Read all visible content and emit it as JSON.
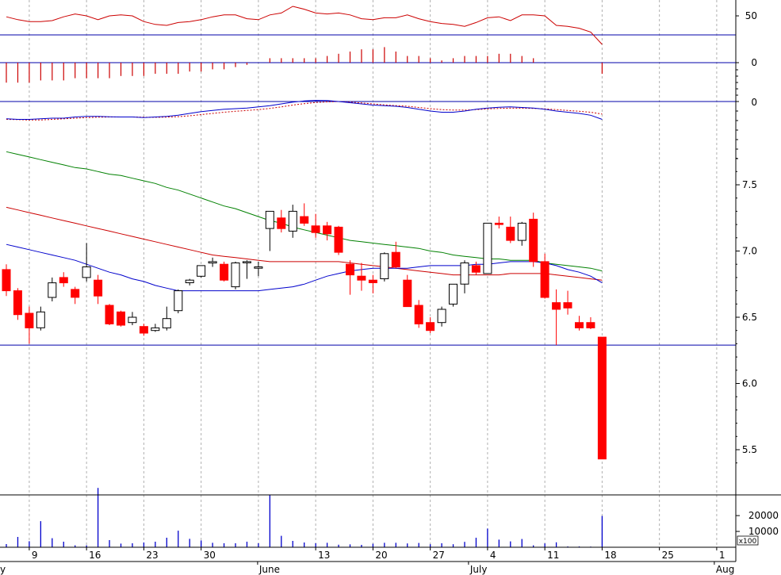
{
  "chart_data": {
    "type": "candlestick",
    "grid": "vertical dotted",
    "dates": [
      "2021-05-06",
      "2021-05-07",
      "2021-05-10",
      "2021-05-11",
      "2021-05-12",
      "2021-05-13",
      "2021-05-14",
      "2021-05-17",
      "2021-05-18",
      "2021-05-19",
      "2021-05-20",
      "2021-05-21",
      "2021-05-24",
      "2021-05-25",
      "2021-05-26",
      "2021-05-27",
      "2021-05-28",
      "2021-05-31",
      "2021-06-01",
      "2021-06-02",
      "2021-06-03",
      "2021-06-04",
      "2021-06-07",
      "2021-06-08",
      "2021-06-09",
      "2021-06-10",
      "2021-06-11",
      "2021-06-14",
      "2021-06-15",
      "2021-06-16",
      "2021-06-17",
      "2021-06-18",
      "2021-06-21",
      "2021-06-22",
      "2021-06-23",
      "2021-06-24",
      "2021-06-25",
      "2021-06-28",
      "2021-06-29",
      "2021-06-30",
      "2021-07-01",
      "2021-07-02",
      "2021-07-05",
      "2021-07-06",
      "2021-07-07",
      "2021-07-08",
      "2021-07-09",
      "2021-07-12",
      "2021-07-13",
      "2021-07-14",
      "2021-07-15",
      "2021-07-16",
      "2021-07-19"
    ],
    "ohlc": [
      [
        6.86,
        6.9,
        6.66,
        6.7
      ],
      [
        6.7,
        6.72,
        6.48,
        6.52
      ],
      [
        6.53,
        6.58,
        6.3,
        6.42
      ],
      [
        6.42,
        6.58,
        6.4,
        6.54
      ],
      [
        6.65,
        6.8,
        6.62,
        6.76
      ],
      [
        6.8,
        6.84,
        6.73,
        6.76
      ],
      [
        6.71,
        6.73,
        6.6,
        6.65
      ],
      [
        6.8,
        7.06,
        6.77,
        6.88
      ],
      [
        6.78,
        6.82,
        6.6,
        6.66
      ],
      [
        6.59,
        6.6,
        6.44,
        6.45
      ],
      [
        6.54,
        6.55,
        6.43,
        6.44
      ],
      [
        6.46,
        6.54,
        6.44,
        6.5
      ],
      [
        6.43,
        6.45,
        6.36,
        6.38
      ],
      [
        6.4,
        6.45,
        6.39,
        6.42
      ],
      [
        6.42,
        6.58,
        6.4,
        6.49
      ],
      [
        6.55,
        6.71,
        6.53,
        6.7
      ],
      [
        6.76,
        6.79,
        6.74,
        6.78
      ],
      [
        6.81,
        6.89,
        6.8,
        6.89
      ],
      [
        6.91,
        6.95,
        6.88,
        6.92
      ],
      [
        6.9,
        6.92,
        6.77,
        6.78
      ],
      [
        6.73,
        6.92,
        6.71,
        6.91
      ],
      [
        6.92,
        6.93,
        6.79,
        6.92
      ],
      [
        6.87,
        6.92,
        6.81,
        6.88
      ],
      [
        7.17,
        7.3,
        7.0,
        7.3
      ],
      [
        7.25,
        7.31,
        7.14,
        7.17
      ],
      [
        7.15,
        7.35,
        7.1,
        7.3
      ],
      [
        7.26,
        7.36,
        7.19,
        7.21
      ],
      [
        7.19,
        7.28,
        7.1,
        7.14
      ],
      [
        7.19,
        7.22,
        7.08,
        7.13
      ],
      [
        7.18,
        7.19,
        6.97,
        6.99
      ],
      [
        6.9,
        6.93,
        6.67,
        6.82
      ],
      [
        6.81,
        6.91,
        6.7,
        6.78
      ],
      [
        6.78,
        6.82,
        6.68,
        6.76
      ],
      [
        6.79,
        6.99,
        6.77,
        6.98
      ],
      [
        6.99,
        7.07,
        6.87,
        6.88
      ],
      [
        6.78,
        6.82,
        6.58,
        6.58
      ],
      [
        6.59,
        6.63,
        6.42,
        6.45
      ],
      [
        6.46,
        6.5,
        6.38,
        6.4
      ],
      [
        6.46,
        6.58,
        6.43,
        6.56
      ],
      [
        6.6,
        6.75,
        6.58,
        6.75
      ],
      [
        6.75,
        6.93,
        6.68,
        6.91
      ],
      [
        6.89,
        6.92,
        6.82,
        6.84
      ],
      [
        6.83,
        7.21,
        6.83,
        7.21
      ],
      [
        7.21,
        7.26,
        7.17,
        7.2
      ],
      [
        7.18,
        7.26,
        7.06,
        7.08
      ],
      [
        7.08,
        7.22,
        7.04,
        7.21
      ],
      [
        7.24,
        7.29,
        6.88,
        6.92
      ],
      [
        6.92,
        6.98,
        6.64,
        6.65
      ],
      [
        6.61,
        6.71,
        6.29,
        6.56
      ],
      [
        6.61,
        6.7,
        6.52,
        6.57
      ],
      [
        6.46,
        6.51,
        6.4,
        6.42
      ],
      [
        6.46,
        6.5,
        6.41,
        6.42
      ],
      [
        6.35,
        6.35,
        5.43,
        5.43
      ]
    ],
    "volume": [
      2000,
      6500,
      3800,
      16500,
      5700,
      3500,
      1200,
      1200,
      37500,
      4500,
      2300,
      2500,
      3000,
      3500,
      6000,
      10500,
      5300,
      4300,
      2800,
      2500,
      2500,
      3500,
      2500,
      33000,
      7200,
      4000,
      3000,
      2500,
      2800,
      1600,
      1800,
      1500,
      2200,
      2800,
      2800,
      2400,
      2700,
      1900,
      2500,
      1900,
      3400,
      6000,
      11800,
      4800,
      3700,
      5200,
      1200,
      2400,
      3100,
      500,
      500,
      400,
      19800
    ],
    "ma_short": [
      7.05,
      7.03,
      7.01,
      6.99,
      6.97,
      6.95,
      6.93,
      6.9,
      6.87,
      6.84,
      6.82,
      6.79,
      6.77,
      6.74,
      6.72,
      6.7,
      6.7,
      6.7,
      6.7,
      6.7,
      6.7,
      6.7,
      6.7,
      6.71,
      6.72,
      6.73,
      6.75,
      6.78,
      6.81,
      6.83,
      6.85,
      6.86,
      6.87,
      6.87,
      6.87,
      6.87,
      6.88,
      6.89,
      6.89,
      6.89,
      6.89,
      6.9,
      6.9,
      6.91,
      6.92,
      6.92,
      6.92,
      6.91,
      6.89,
      6.86,
      6.84,
      6.81,
      6.76
    ],
    "ma_mid": [
      7.33,
      7.31,
      7.29,
      7.27,
      7.25,
      7.23,
      7.21,
      7.19,
      7.17,
      7.15,
      7.13,
      7.11,
      7.09,
      7.07,
      7.05,
      7.03,
      7.01,
      6.99,
      6.97,
      6.96,
      6.95,
      6.94,
      6.93,
      6.92,
      6.92,
      6.92,
      6.92,
      6.92,
      6.92,
      6.92,
      6.91,
      6.9,
      6.89,
      6.88,
      6.87,
      6.86,
      6.85,
      6.84,
      6.83,
      6.82,
      6.82,
      6.82,
      6.82,
      6.82,
      6.83,
      6.83,
      6.83,
      6.83,
      6.82,
      6.81,
      6.8,
      6.79,
      6.78
    ],
    "ma_long": [
      7.75,
      7.73,
      7.71,
      7.69,
      7.67,
      7.65,
      7.63,
      7.62,
      7.6,
      7.58,
      7.57,
      7.55,
      7.53,
      7.51,
      7.48,
      7.46,
      7.43,
      7.4,
      7.37,
      7.34,
      7.32,
      7.29,
      7.26,
      7.23,
      7.21,
      7.18,
      7.16,
      7.14,
      7.12,
      7.1,
      7.08,
      7.07,
      7.06,
      7.05,
      7.04,
      7.03,
      7.02,
      7.0,
      6.99,
      6.97,
      6.96,
      6.95,
      6.94,
      6.94,
      6.93,
      6.93,
      6.93,
      6.91,
      6.9,
      6.89,
      6.88,
      6.87,
      6.85
    ],
    "rsi": [
      49,
      46,
      44,
      44,
      45,
      49,
      52,
      50,
      46,
      50,
      51,
      50,
      44,
      41,
      40,
      43,
      44,
      46,
      49,
      51,
      51,
      47,
      46,
      51,
      53,
      60,
      57,
      53,
      52,
      53,
      51,
      47,
      46,
      48,
      48,
      51,
      47,
      44,
      42,
      41,
      39,
      43,
      48,
      49,
      45,
      51,
      51,
      50,
      40,
      39,
      37,
      33,
      20
    ],
    "rsi_ref": 30,
    "oscillator": [
      -9,
      -9,
      -9,
      -8,
      -8,
      -8,
      -7,
      -7,
      -7,
      -7,
      -6,
      -6,
      -6,
      -5,
      -5,
      -5,
      -4,
      -4,
      -3,
      -3,
      -2,
      -1,
      0,
      2,
      2,
      2,
      2,
      2,
      3,
      4,
      5,
      6,
      6,
      7,
      5,
      3,
      3,
      2,
      1,
      2,
      3,
      3,
      3,
      4,
      4,
      3,
      2,
      0,
      0,
      0,
      0,
      0,
      -5
    ],
    "macd": [
      -0.145,
      -0.15,
      -0.15,
      -0.145,
      -0.14,
      -0.14,
      -0.13,
      -0.125,
      -0.125,
      -0.128,
      -0.13,
      -0.13,
      -0.135,
      -0.13,
      -0.125,
      -0.115,
      -0.1,
      -0.085,
      -0.075,
      -0.065,
      -0.06,
      -0.055,
      -0.045,
      -0.035,
      -0.02,
      -0.005,
      0.005,
      0.01,
      0.008,
      0.0,
      -0.01,
      -0.02,
      -0.03,
      -0.035,
      -0.04,
      -0.05,
      -0.065,
      -0.08,
      -0.09,
      -0.09,
      -0.08,
      -0.065,
      -0.055,
      -0.048,
      -0.045,
      -0.05,
      -0.055,
      -0.065,
      -0.08,
      -0.09,
      -0.1,
      -0.115,
      -0.15
    ],
    "macd_signal": [
      -0.15,
      -0.152,
      -0.155,
      -0.155,
      -0.15,
      -0.145,
      -0.14,
      -0.135,
      -0.132,
      -0.13,
      -0.13,
      -0.13,
      -0.132,
      -0.133,
      -0.131,
      -0.127,
      -0.12,
      -0.11,
      -0.1,
      -0.09,
      -0.082,
      -0.075,
      -0.068,
      -0.058,
      -0.045,
      -0.03,
      -0.018,
      -0.008,
      -0.003,
      0.0,
      -0.005,
      -0.012,
      -0.02,
      -0.028,
      -0.034,
      -0.04,
      -0.05,
      -0.06,
      -0.068,
      -0.072,
      -0.072,
      -0.068,
      -0.062,
      -0.058,
      -0.056,
      -0.056,
      -0.058,
      -0.062,
      -0.068,
      -0.075,
      -0.082,
      -0.09,
      -0.105
    ],
    "price_axis": {
      "ticks": [
        "5.5",
        "6.0",
        "6.5",
        "7.0",
        "7.5"
      ],
      "ylim": [
        5.22,
        7.75
      ],
      "support_line": 6.29
    },
    "volume_axis": {
      "ticks": [
        "10000",
        "20000"
      ],
      "multiplier_label": "x100"
    },
    "rsi_axis": {
      "ticks": [
        "50"
      ]
    },
    "osc_axis": {
      "ticks": [
        "0"
      ]
    },
    "macd_axis": {
      "ticks": [
        "0"
      ]
    },
    "x_day_labels": [
      "9",
      "16",
      "23",
      "30",
      "13",
      "20",
      "27",
      "4",
      "11",
      "18",
      "25",
      "1"
    ],
    "x_month_labels": [
      "y",
      "June",
      "July",
      "Aug"
    ]
  },
  "colors": {
    "up": "#ffffff",
    "down": "#ff0000",
    "ma_short": "#0000cc",
    "ma_mid": "#cc0000",
    "ma_long": "#008000",
    "rsi": "#cc0000",
    "osc": "#cc0000",
    "macd": "#0000cc",
    "macd_signal": "#cc0000",
    "volume": "#0000cc",
    "hline": "#0000aa",
    "grid": "#b0b0b0"
  }
}
